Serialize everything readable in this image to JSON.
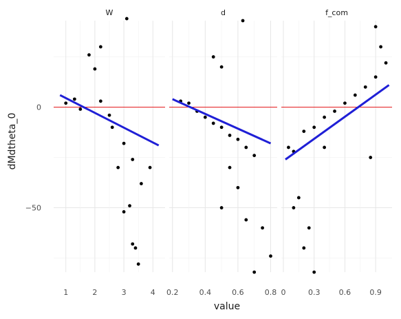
{
  "chart_data": {
    "type": "scatter",
    "xlabel": "value",
    "ylabel": "dMdtheta_0",
    "ylim": [
      -82,
      43
    ],
    "y_ticks": [
      0,
      -50
    ],
    "hline": {
      "y": 0,
      "color": "#e41a1c"
    },
    "trend_color": "#1f1fd6",
    "grid": true,
    "panels": [
      {
        "strip": "W",
        "xlim": [
          0.58,
          4.42
        ],
        "x_ticks": [
          1,
          2,
          3,
          4
        ],
        "x_tick_labels": [
          "1",
          "2",
          "3",
          "4"
        ],
        "trend": {
          "x": [
            0.8,
            4.2
          ],
          "y": [
            6,
            -19
          ]
        },
        "points": [
          [
            1.0,
            2
          ],
          [
            1.3,
            4
          ],
          [
            1.5,
            -1
          ],
          [
            2.2,
            3
          ],
          [
            2.5,
            -4
          ],
          [
            2.6,
            -10
          ],
          [
            3.0,
            -18
          ],
          [
            3.3,
            -26
          ],
          [
            3.6,
            -38
          ],
          [
            3.9,
            -30
          ],
          [
            2.0,
            19
          ],
          [
            3.3,
            -68
          ],
          [
            3.5,
            -78
          ],
          [
            3.4,
            -70
          ],
          [
            1.8,
            26
          ],
          [
            2.2,
            30
          ],
          [
            3.1,
            44
          ],
          [
            2.8,
            -30
          ],
          [
            3.2,
            -49
          ],
          [
            3.0,
            -52
          ]
        ]
      },
      {
        "strip": "d",
        "xlim": [
          0.18,
          0.84
        ],
        "x_ticks": [
          0.2,
          0.4,
          0.6,
          0.8
        ],
        "x_tick_labels": [
          "0.2",
          "0.4",
          "0.6",
          "0.8"
        ],
        "trend": {
          "x": [
            0.2,
            0.8
          ],
          "y": [
            4,
            -18
          ]
        },
        "points": [
          [
            0.25,
            3
          ],
          [
            0.3,
            2
          ],
          [
            0.35,
            -2
          ],
          [
            0.4,
            -5
          ],
          [
            0.45,
            -8
          ],
          [
            0.5,
            -10
          ],
          [
            0.55,
            -14
          ],
          [
            0.6,
            -16
          ],
          [
            0.65,
            -20
          ],
          [
            0.7,
            -24
          ],
          [
            0.5,
            20
          ],
          [
            0.45,
            25
          ],
          [
            0.63,
            43
          ],
          [
            0.6,
            -40
          ],
          [
            0.7,
            -82
          ],
          [
            0.65,
            -56
          ],
          [
            0.75,
            -60
          ],
          [
            0.55,
            -30
          ],
          [
            0.5,
            -50
          ],
          [
            0.8,
            -74
          ]
        ]
      },
      {
        "strip": "f_com",
        "xlim": [
          -0.02,
          1.06
        ],
        "x_ticks": [
          0,
          0.3,
          0.6,
          0.9
        ],
        "x_tick_labels": [
          "0",
          "0.3",
          "0.6",
          "0.9"
        ],
        "trend": {
          "x": [
            0.02,
            1.03
          ],
          "y": [
            -26,
            11
          ]
        },
        "points": [
          [
            0.05,
            -20
          ],
          [
            0.1,
            -22
          ],
          [
            0.2,
            -12
          ],
          [
            0.3,
            -10
          ],
          [
            0.4,
            -5
          ],
          [
            0.5,
            -2
          ],
          [
            0.6,
            2
          ],
          [
            0.7,
            6
          ],
          [
            0.8,
            10
          ],
          [
            0.9,
            15
          ],
          [
            1.0,
            22
          ],
          [
            0.95,
            30
          ],
          [
            0.9,
            40
          ],
          [
            0.1,
            -50
          ],
          [
            0.2,
            -70
          ],
          [
            0.3,
            -82
          ],
          [
            0.25,
            -60
          ],
          [
            0.15,
            -45
          ],
          [
            0.4,
            -20
          ],
          [
            0.85,
            -25
          ]
        ]
      }
    ]
  }
}
